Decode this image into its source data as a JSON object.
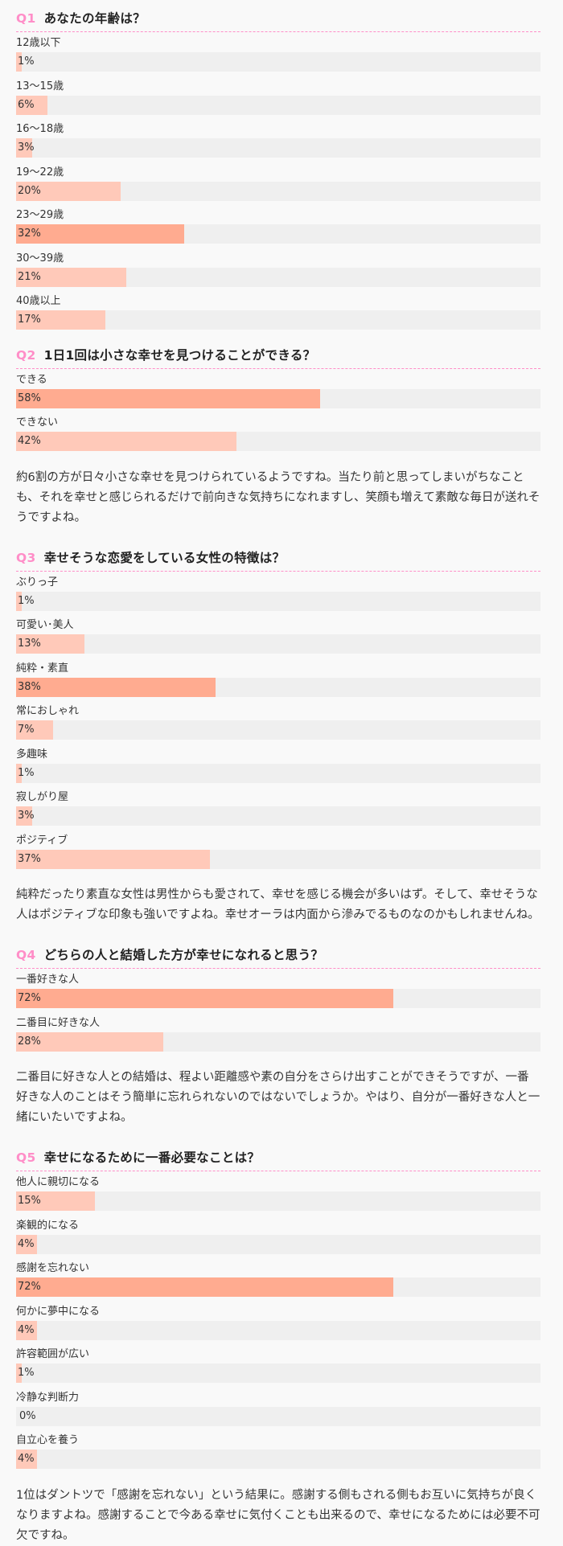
{
  "colors": {
    "accent": "#ff8ec8",
    "bar": "#ffc9b9",
    "bar_top": "#ffab90",
    "track": "#efefef"
  },
  "questions": [
    {
      "num": "Q1",
      "title": "あなたの年齢は？",
      "options": [
        {
          "label": "12歳以下",
          "value": 1
        },
        {
          "label": "13〜15歳",
          "value": 6
        },
        {
          "label": "16〜18歳",
          "value": 3
        },
        {
          "label": "19〜22歳",
          "value": 20
        },
        {
          "label": "23〜29歳",
          "value": 32
        },
        {
          "label": "30〜39歳",
          "value": 21
        },
        {
          "label": "40歳以上",
          "value": 17
        }
      ],
      "comment": ""
    },
    {
      "num": "Q2",
      "title": "1日1回は小さな幸せを見つけることができる？",
      "options": [
        {
          "label": "できる",
          "value": 58
        },
        {
          "label": "できない",
          "value": 42
        }
      ],
      "comment": "約6割の方が日々小さな幸せを見つけられているようですね。当たり前と思ってしまいがちなことも、それを幸せと感じられるだけで前向きな気持ちになれますし、笑顔も増えて素敵な毎日が送れそうですよね。"
    },
    {
      "num": "Q3",
      "title": "幸せそうな恋愛をしている女性の特徴は？",
      "options": [
        {
          "label": "ぶりっ子",
          "value": 1
        },
        {
          "label": "可愛い･美人",
          "value": 13
        },
        {
          "label": "純粋・素直",
          "value": 38
        },
        {
          "label": "常におしゃれ",
          "value": 7
        },
        {
          "label": "多趣味",
          "value": 1
        },
        {
          "label": "寂しがり屋",
          "value": 3
        },
        {
          "label": "ポジティブ",
          "value": 37
        }
      ],
      "comment": "純粋だったり素直な女性は男性からも愛されて、幸せを感じる機会が多いはず。そして、幸せそうな人はポジティブな印象も強いですよね。幸せオーラは内面から滲みでるものなのかもしれませんね。"
    },
    {
      "num": "Q4",
      "title": "どちらの人と結婚した方が幸せになれると思う？",
      "options": [
        {
          "label": "一番好きな人",
          "value": 72
        },
        {
          "label": "二番目に好きな人",
          "value": 28
        }
      ],
      "comment": "二番目に好きな人との結婚は、程よい距離感や素の自分をさらけ出すことができそうですが、一番好きな人のことはそう簡単に忘れられないのではないでしょうか。やはり、自分が一番好きな人と一緒にいたいですよね。"
    },
    {
      "num": "Q5",
      "title": "幸せになるために一番必要なことは？",
      "options": [
        {
          "label": "他人に親切になる",
          "value": 15
        },
        {
          "label": "楽観的になる",
          "value": 4
        },
        {
          "label": "感謝を忘れない",
          "value": 72
        },
        {
          "label": "何かに夢中になる",
          "value": 4
        },
        {
          "label": "許容範囲が広い",
          "value": 1
        },
        {
          "label": "冷静な判断力",
          "value": 0
        },
        {
          "label": "自立心を養う",
          "value": 4
        }
      ],
      "comment": "1位はダントツで「感謝を忘れない」という結果に。感謝する側もされる側もお互いに気持ちが良くなりますよね。感謝することで今ある幸せに気付くことも出来るので、幸せになるためには必要不可欠ですね。"
    }
  ]
}
